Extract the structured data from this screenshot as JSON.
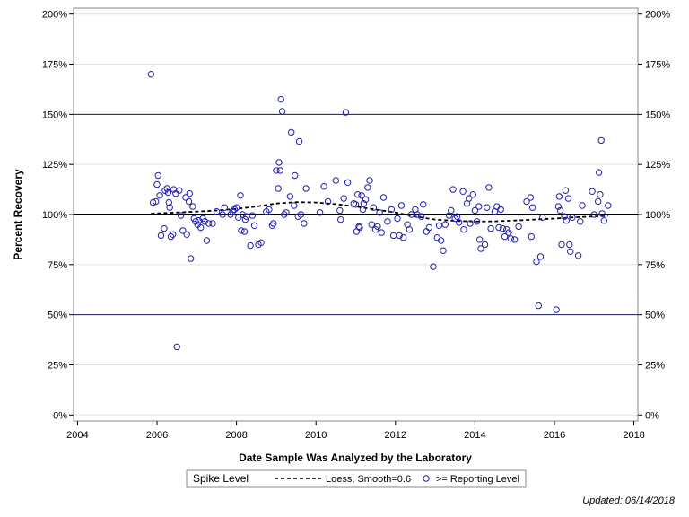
{
  "chart_data": {
    "type": "scatter",
    "xlabel": "Date Sample Was Analyzed by the Laboratory",
    "ylabel": "Percent Recovery",
    "xlim": [
      2003.9,
      2018.1
    ],
    "ylim": [
      -3,
      203
    ],
    "x_ticks": [
      2004,
      2006,
      2008,
      2010,
      2012,
      2014,
      2016,
      2018
    ],
    "x_tick_labels": [
      "2004",
      "2006",
      "2008",
      "2010",
      "2012",
      "2014",
      "2016",
      "2018"
    ],
    "y_ticks": [
      0,
      25,
      50,
      75,
      100,
      125,
      150,
      175,
      200
    ],
    "y_tick_labels": [
      "0%",
      "25%",
      "50%",
      "75%",
      "100%",
      "125%",
      "150%",
      "175%",
      "200%"
    ],
    "grid": true,
    "reference_lines": [
      {
        "y": 100,
        "style": "thick"
      },
      {
        "y": 150,
        "style": "thin"
      },
      {
        "y": 50,
        "style": "thin"
      }
    ],
    "legend": {
      "placement": "bottom",
      "entries": [
        "Spike Level",
        "Loess, Smooth=0.6",
        ">= Reporting Level"
      ]
    },
    "series": [
      {
        "name": ">= Reporting Level",
        "kind": "points",
        "color": "#2020b0",
        "points": [
          [
            2005.85,
            170
          ],
          [
            2005.9,
            106
          ],
          [
            2005.97,
            106.5
          ],
          [
            2006.0,
            115
          ],
          [
            2006.03,
            119.5
          ],
          [
            2006.07,
            109.5
          ],
          [
            2006.1,
            89.5
          ],
          [
            2006.18,
            93
          ],
          [
            2006.2,
            112
          ],
          [
            2006.25,
            113
          ],
          [
            2006.28,
            111
          ],
          [
            2006.3,
            106
          ],
          [
            2006.32,
            103.5
          ],
          [
            2006.35,
            89
          ],
          [
            2006.4,
            90
          ],
          [
            2006.42,
            112.5
          ],
          [
            2006.47,
            110.5
          ],
          [
            2006.5,
            34
          ],
          [
            2006.56,
            112
          ],
          [
            2006.6,
            99.5
          ],
          [
            2006.65,
            92
          ],
          [
            2006.72,
            108.5
          ],
          [
            2006.75,
            90
          ],
          [
            2006.8,
            106.5
          ],
          [
            2006.82,
            110.5
          ],
          [
            2006.85,
            78
          ],
          [
            2006.9,
            104
          ],
          [
            2006.93,
            98
          ],
          [
            2006.97,
            96.5
          ],
          [
            2007.02,
            95
          ],
          [
            2007.05,
            97
          ],
          [
            2007.1,
            93.5
          ],
          [
            2007.15,
            98
          ],
          [
            2007.2,
            96.5
          ],
          [
            2007.25,
            87
          ],
          [
            2007.3,
            95.5
          ],
          [
            2007.4,
            95.5
          ],
          [
            2007.5,
            101.5
          ],
          [
            2007.65,
            100
          ],
          [
            2007.7,
            103.5
          ],
          [
            2007.85,
            100
          ],
          [
            2007.9,
            101.5
          ],
          [
            2007.95,
            102.5
          ],
          [
            2008.0,
            103.5
          ],
          [
            2008.05,
            98.5
          ],
          [
            2008.1,
            109.5
          ],
          [
            2008.12,
            92
          ],
          [
            2008.15,
            100
          ],
          [
            2008.2,
            91.5
          ],
          [
            2008.22,
            97.5
          ],
          [
            2008.25,
            99
          ],
          [
            2008.35,
            84.5
          ],
          [
            2008.4,
            99.5
          ],
          [
            2008.45,
            94.5
          ],
          [
            2008.55,
            85
          ],
          [
            2008.62,
            86
          ],
          [
            2008.75,
            101.5
          ],
          [
            2008.82,
            102.5
          ],
          [
            2008.9,
            94.5
          ],
          [
            2008.93,
            95.5
          ],
          [
            2009.0,
            122
          ],
          [
            2009.05,
            113
          ],
          [
            2009.07,
            126
          ],
          [
            2009.1,
            122
          ],
          [
            2009.12,
            157.5
          ],
          [
            2009.15,
            151.5
          ],
          [
            2009.2,
            100
          ],
          [
            2009.25,
            101
          ],
          [
            2009.35,
            109
          ],
          [
            2009.38,
            141
          ],
          [
            2009.45,
            104.5
          ],
          [
            2009.47,
            119.5
          ],
          [
            2009.55,
            99
          ],
          [
            2009.58,
            136.5
          ],
          [
            2009.62,
            100
          ],
          [
            2009.7,
            95.5
          ],
          [
            2009.75,
            113
          ],
          [
            2010.1,
            101
          ],
          [
            2010.2,
            114
          ],
          [
            2010.3,
            106.5
          ],
          [
            2010.5,
            117
          ],
          [
            2010.6,
            102
          ],
          [
            2010.62,
            97.5
          ],
          [
            2010.7,
            108
          ],
          [
            2010.75,
            151
          ],
          [
            2010.8,
            116
          ],
          [
            2010.95,
            105.5
          ],
          [
            2011.0,
            105
          ],
          [
            2011.02,
            91.5
          ],
          [
            2011.05,
            110
          ],
          [
            2011.08,
            94
          ],
          [
            2011.1,
            93.5
          ],
          [
            2011.15,
            109.5
          ],
          [
            2011.18,
            102.5
          ],
          [
            2011.2,
            105.5
          ],
          [
            2011.25,
            107.5
          ],
          [
            2011.3,
            113.5
          ],
          [
            2011.35,
            117
          ],
          [
            2011.4,
            95
          ],
          [
            2011.45,
            103.5
          ],
          [
            2011.5,
            92.5
          ],
          [
            2011.55,
            94
          ],
          [
            2011.6,
            101
          ],
          [
            2011.65,
            91
          ],
          [
            2011.7,
            108.5
          ],
          [
            2011.8,
            96.5
          ],
          [
            2011.9,
            102.5
          ],
          [
            2011.95,
            89.5
          ],
          [
            2012.05,
            98
          ],
          [
            2012.1,
            89.5
          ],
          [
            2012.15,
            104.5
          ],
          [
            2012.2,
            88.5
          ],
          [
            2012.3,
            95
          ],
          [
            2012.35,
            92.5
          ],
          [
            2012.4,
            100
          ],
          [
            2012.5,
            102.5
          ],
          [
            2012.55,
            100
          ],
          [
            2012.65,
            99
          ],
          [
            2012.7,
            105
          ],
          [
            2012.78,
            91.5
          ],
          [
            2012.85,
            93.5
          ],
          [
            2012.95,
            74
          ],
          [
            2013.05,
            88.5
          ],
          [
            2013.1,
            94.5
          ],
          [
            2013.15,
            87
          ],
          [
            2013.2,
            82
          ],
          [
            2013.25,
            95
          ],
          [
            2013.35,
            99.5
          ],
          [
            2013.4,
            102
          ],
          [
            2013.45,
            112.5
          ],
          [
            2013.5,
            98
          ],
          [
            2013.55,
            99
          ],
          [
            2013.6,
            96
          ],
          [
            2013.7,
            111.5
          ],
          [
            2013.72,
            92.5
          ],
          [
            2013.8,
            105.5
          ],
          [
            2013.85,
            108
          ],
          [
            2013.88,
            95.5
          ],
          [
            2013.95,
            110
          ],
          [
            2014.0,
            102
          ],
          [
            2014.05,
            96.5
          ],
          [
            2014.1,
            104
          ],
          [
            2014.12,
            87.5
          ],
          [
            2014.15,
            83
          ],
          [
            2014.25,
            85
          ],
          [
            2014.3,
            103.5
          ],
          [
            2014.35,
            113.5
          ],
          [
            2014.4,
            93
          ],
          [
            2014.5,
            101.5
          ],
          [
            2014.55,
            104
          ],
          [
            2014.6,
            93.5
          ],
          [
            2014.65,
            102.5
          ],
          [
            2014.7,
            93
          ],
          [
            2014.75,
            89
          ],
          [
            2014.8,
            92.5
          ],
          [
            2014.85,
            91
          ],
          [
            2014.9,
            88
          ],
          [
            2015.0,
            87.5
          ],
          [
            2015.1,
            94
          ],
          [
            2015.3,
            106.5
          ],
          [
            2015.4,
            108.5
          ],
          [
            2015.42,
            89
          ],
          [
            2015.45,
            103.5
          ],
          [
            2015.55,
            76.5
          ],
          [
            2015.6,
            54.5
          ],
          [
            2015.65,
            79
          ],
          [
            2015.7,
            98.5
          ],
          [
            2016.05,
            52.5
          ],
          [
            2016.1,
            104
          ],
          [
            2016.12,
            109
          ],
          [
            2016.15,
            102
          ],
          [
            2016.18,
            85
          ],
          [
            2016.25,
            99
          ],
          [
            2016.28,
            112
          ],
          [
            2016.3,
            97
          ],
          [
            2016.35,
            108
          ],
          [
            2016.38,
            85
          ],
          [
            2016.4,
            81.5
          ],
          [
            2016.45,
            98.5
          ],
          [
            2016.6,
            79.5
          ],
          [
            2016.65,
            96.5
          ],
          [
            2016.7,
            104.5
          ],
          [
            2016.95,
            111.5
          ],
          [
            2017.0,
            100
          ],
          [
            2017.1,
            106.5
          ],
          [
            2017.12,
            121
          ],
          [
            2017.15,
            110
          ],
          [
            2017.18,
            137
          ],
          [
            2017.2,
            100.5
          ],
          [
            2017.25,
            97
          ],
          [
            2017.35,
            104.5
          ]
        ]
      },
      {
        "name": "Loess, Smooth=0.6",
        "kind": "line",
        "style": "dashed",
        "color": "#000000",
        "points": [
          [
            2005.85,
            100.5
          ],
          [
            2006.5,
            101
          ],
          [
            2007.0,
            101.5
          ],
          [
            2007.5,
            102
          ],
          [
            2008.0,
            102.8
          ],
          [
            2008.5,
            104
          ],
          [
            2009.0,
            105.5
          ],
          [
            2009.5,
            106.2
          ],
          [
            2010.0,
            106
          ],
          [
            2010.5,
            105.2
          ],
          [
            2011.0,
            104
          ],
          [
            2011.5,
            102.5
          ],
          [
            2012.0,
            101
          ],
          [
            2012.5,
            99
          ],
          [
            2013.0,
            97.5
          ],
          [
            2013.5,
            96.8
          ],
          [
            2014.0,
            96.5
          ],
          [
            2014.5,
            96.6
          ],
          [
            2015.0,
            97
          ],
          [
            2015.5,
            97.5
          ],
          [
            2016.0,
            98
          ],
          [
            2016.5,
            98.6
          ],
          [
            2017.0,
            99
          ],
          [
            2017.35,
            99.3
          ]
        ]
      }
    ]
  },
  "footer": {
    "updated": "Updated: 06/14/2018"
  }
}
